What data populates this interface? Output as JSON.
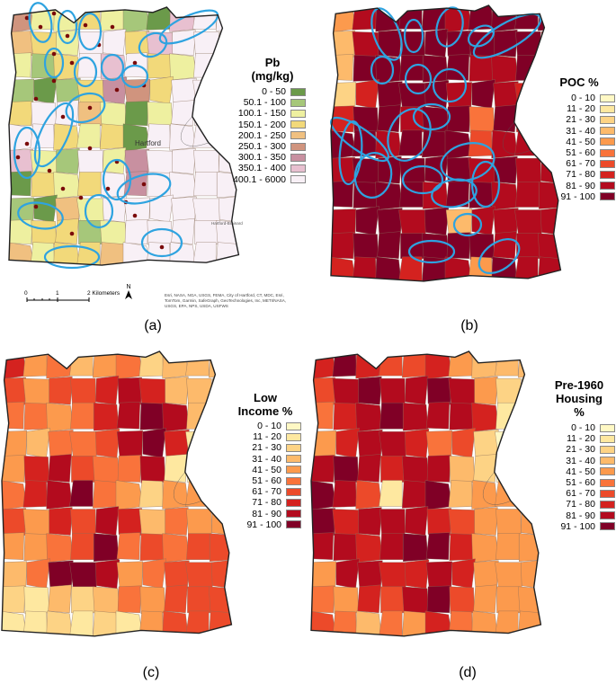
{
  "colors": {
    "poc": [
      "#fff8c4",
      "#fee8a0",
      "#fdd385",
      "#fdba6b",
      "#fc9a4d",
      "#f9733b",
      "#ec4a2a",
      "#d4221f",
      "#b30b1e",
      "#800026"
    ],
    "pb": [
      "#6b9a4a",
      "#a6c77a",
      "#eef0a0",
      "#f2d97a",
      "#f0c080",
      "#d0947e",
      "#c890a0",
      "#e8c0d0",
      "#f8f0f6"
    ],
    "outline": "#222222",
    "ellipse": "#2ea3e0",
    "sample": "#7a0a0a"
  },
  "panels": {
    "a": {
      "label": "(a)",
      "legend_title": "Pb\n(mg/kg)",
      "legend": [
        "0 - 50",
        "50.1 - 100",
        "100.1 - 150",
        "150.1 - 200",
        "200.1 - 250",
        "250.1 - 300",
        "300.1 - 350",
        "350.1 - 400",
        "400.1 - 6000"
      ],
      "scale_labels": [
        "0",
        "1",
        "2 Kilometers"
      ],
      "north": "N",
      "credits": "Esri, NASA, NGA, USGS, FEMA, City of Hartford, CT, MDC, Esri, TomTom, Garmin, SafeGraph, GeoTechnologies, Inc, METI/NASA, USGS, EPA, NPS, USDA, USFWS",
      "map_labels": [
        "Hartford",
        "Hartford-Brainard Airport"
      ]
    },
    "b": {
      "label": "(b)",
      "legend_title": "POC %",
      "legend": [
        "0 - 10",
        "11 - 20",
        "21 - 30",
        "31 - 40",
        "41 - 50",
        "51 - 60",
        "61 - 70",
        "71 - 80",
        "81 - 90",
        "91 - 100"
      ]
    },
    "c": {
      "label": "(c)",
      "legend_title": "Low\nIncome %",
      "legend": [
        "0 - 10",
        "11 - 20",
        "21 - 30",
        "31 - 40",
        "41 - 50",
        "51 - 60",
        "61 - 70",
        "71 - 80",
        "81 - 90",
        "91 - 100"
      ]
    },
    "d": {
      "label": "(d)",
      "legend_title": "Pre-1960\nHousing\n%",
      "legend": [
        "0 - 10",
        "11 - 20",
        "21 - 30",
        "31 - 40",
        "41 - 50",
        "51 - 60",
        "61 - 70",
        "71 - 80",
        "81 - 90",
        "91 - 100"
      ]
    }
  }
}
